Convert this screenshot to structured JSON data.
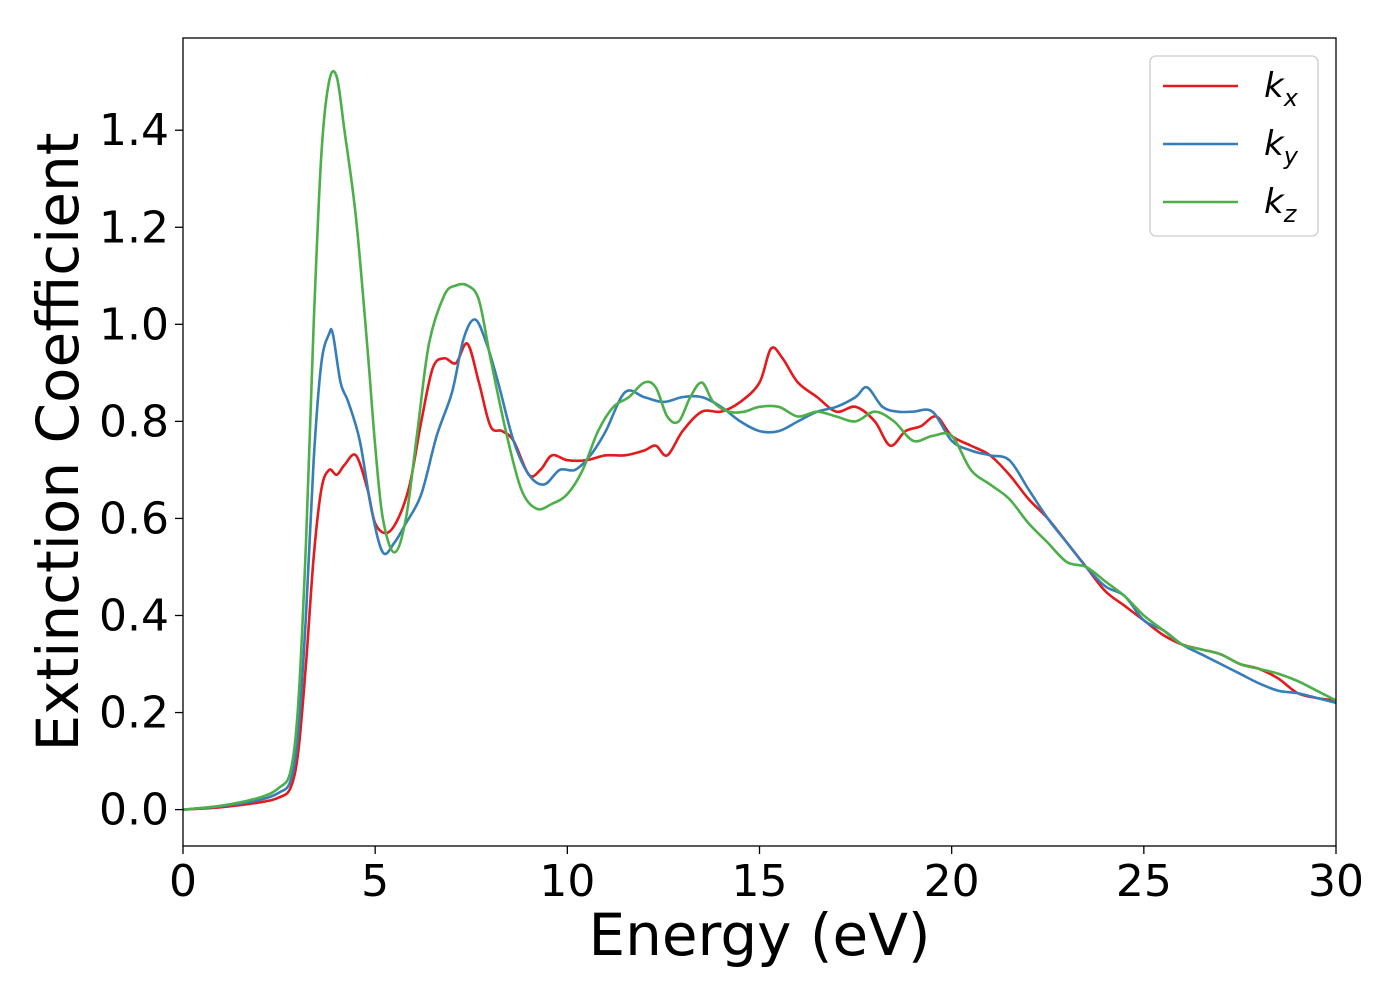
{
  "chart_data": {
    "type": "line",
    "xlabel": "Energy (eV)",
    "ylabel": "Extinction Coefficient",
    "xlim": [
      0,
      30
    ],
    "ylim": [
      -0.075,
      1.59
    ],
    "xticks": [
      0,
      5,
      10,
      15,
      20,
      25,
      30
    ],
    "xtick_labels": [
      "0",
      "5",
      "10",
      "15",
      "20",
      "25",
      "30"
    ],
    "yticks": [
      0.0,
      0.2,
      0.4,
      0.6,
      0.8,
      1.0,
      1.2,
      1.4
    ],
    "ytick_labels": [
      "0.0",
      "0.2",
      "0.4",
      "0.6",
      "0.8",
      "1.0",
      "1.2",
      "1.4"
    ],
    "grid": false,
    "legend_position": "top-right",
    "series": [
      {
        "name": "k",
        "subscript": "x",
        "color": "#e41a1c",
        "x": [
          0,
          1,
          2,
          2.5,
          2.8,
          3.0,
          3.2,
          3.4,
          3.6,
          3.8,
          4.0,
          4.2,
          4.5,
          4.8,
          5.0,
          5.3,
          5.6,
          5.9,
          6.2,
          6.5,
          6.8,
          7.1,
          7.4,
          7.7,
          8.0,
          8.3,
          8.6,
          9.0,
          9.3,
          9.6,
          10.0,
          10.5,
          11.0,
          11.5,
          12.0,
          12.3,
          12.6,
          13.0,
          13.5,
          14.0,
          14.5,
          15.0,
          15.3,
          15.6,
          16.0,
          16.5,
          17.0,
          17.5,
          18.0,
          18.4,
          18.8,
          19.2,
          19.6,
          20.0,
          20.5,
          21.0,
          21.5,
          22.0,
          22.5,
          23.0,
          23.5,
          24.0,
          24.5,
          25.0,
          25.5,
          26.0,
          26.5,
          27.0,
          27.5,
          28.0,
          28.5,
          29.0,
          29.5,
          30.0
        ],
        "y": [
          0.0,
          0.005,
          0.015,
          0.025,
          0.045,
          0.12,
          0.3,
          0.52,
          0.66,
          0.7,
          0.69,
          0.71,
          0.73,
          0.66,
          0.59,
          0.57,
          0.6,
          0.67,
          0.8,
          0.91,
          0.93,
          0.92,
          0.96,
          0.88,
          0.79,
          0.78,
          0.76,
          0.69,
          0.7,
          0.73,
          0.72,
          0.72,
          0.73,
          0.73,
          0.74,
          0.75,
          0.73,
          0.78,
          0.82,
          0.82,
          0.84,
          0.88,
          0.95,
          0.93,
          0.88,
          0.85,
          0.82,
          0.83,
          0.8,
          0.75,
          0.78,
          0.79,
          0.81,
          0.77,
          0.75,
          0.73,
          0.69,
          0.64,
          0.6,
          0.55,
          0.5,
          0.45,
          0.42,
          0.39,
          0.36,
          0.34,
          0.33,
          0.32,
          0.3,
          0.29,
          0.27,
          0.24,
          0.23,
          0.225
        ]
      },
      {
        "name": "k",
        "subscript": "y",
        "color": "#377eb8",
        "x": [
          0,
          1,
          2,
          2.5,
          2.8,
          3.0,
          3.2,
          3.4,
          3.6,
          3.8,
          3.9,
          4.1,
          4.3,
          4.6,
          4.9,
          5.2,
          5.5,
          5.8,
          6.2,
          6.6,
          7.0,
          7.3,
          7.6,
          7.9,
          8.2,
          8.6,
          9.0,
          9.4,
          9.8,
          10.2,
          10.6,
          11.0,
          11.5,
          12.0,
          12.5,
          13.0,
          13.5,
          14.0,
          14.5,
          15.0,
          15.5,
          16.0,
          16.5,
          17.0,
          17.5,
          17.8,
          18.2,
          18.6,
          19.0,
          19.5,
          20.0,
          20.5,
          21.0,
          21.5,
          22.0,
          22.5,
          23.0,
          23.5,
          24.0,
          24.5,
          25.0,
          25.5,
          26.0,
          26.5,
          27.0,
          27.5,
          28.0,
          28.5,
          29.0,
          29.5,
          30.0
        ],
        "y": [
          0.0,
          0.007,
          0.02,
          0.035,
          0.06,
          0.16,
          0.4,
          0.72,
          0.92,
          0.98,
          0.98,
          0.88,
          0.84,
          0.76,
          0.62,
          0.53,
          0.55,
          0.59,
          0.65,
          0.77,
          0.86,
          0.97,
          1.01,
          0.96,
          0.88,
          0.76,
          0.69,
          0.67,
          0.7,
          0.7,
          0.73,
          0.78,
          0.86,
          0.85,
          0.84,
          0.85,
          0.85,
          0.83,
          0.8,
          0.78,
          0.78,
          0.8,
          0.82,
          0.83,
          0.85,
          0.87,
          0.83,
          0.82,
          0.82,
          0.82,
          0.76,
          0.74,
          0.73,
          0.72,
          0.66,
          0.6,
          0.55,
          0.5,
          0.46,
          0.44,
          0.39,
          0.37,
          0.34,
          0.32,
          0.3,
          0.28,
          0.26,
          0.245,
          0.24,
          0.23,
          0.22
        ]
      },
      {
        "name": "k",
        "subscript": "z",
        "color": "#4daf4a",
        "x": [
          0,
          1,
          2,
          2.5,
          2.8,
          3.0,
          3.2,
          3.4,
          3.6,
          3.8,
          4.0,
          4.2,
          4.5,
          4.8,
          5.0,
          5.2,
          5.5,
          5.8,
          6.1,
          6.4,
          6.8,
          7.1,
          7.4,
          7.7,
          8.0,
          8.4,
          8.8,
          9.2,
          9.6,
          10.0,
          10.4,
          10.8,
          11.2,
          11.6,
          12.0,
          12.3,
          12.6,
          12.9,
          13.2,
          13.5,
          13.8,
          14.2,
          14.6,
          15.0,
          15.5,
          16.0,
          16.5,
          17.0,
          17.5,
          18.0,
          18.5,
          19.0,
          19.5,
          20.0,
          20.5,
          21.0,
          21.5,
          22.0,
          22.5,
          23.0,
          23.5,
          24.0,
          24.5,
          25.0,
          25.5,
          26.0,
          26.5,
          27.0,
          27.5,
          28.0,
          28.5,
          29.0,
          29.5,
          30.0
        ],
        "y": [
          0.0,
          0.008,
          0.025,
          0.045,
          0.08,
          0.22,
          0.55,
          1.0,
          1.35,
          1.5,
          1.51,
          1.4,
          1.22,
          0.95,
          0.75,
          0.6,
          0.53,
          0.6,
          0.78,
          0.96,
          1.06,
          1.08,
          1.08,
          1.05,
          0.93,
          0.78,
          0.66,
          0.62,
          0.63,
          0.65,
          0.7,
          0.78,
          0.83,
          0.85,
          0.88,
          0.87,
          0.81,
          0.8,
          0.85,
          0.88,
          0.84,
          0.82,
          0.82,
          0.83,
          0.83,
          0.81,
          0.82,
          0.81,
          0.8,
          0.82,
          0.8,
          0.76,
          0.77,
          0.77,
          0.7,
          0.67,
          0.64,
          0.59,
          0.55,
          0.51,
          0.5,
          0.47,
          0.44,
          0.4,
          0.37,
          0.34,
          0.33,
          0.32,
          0.3,
          0.29,
          0.28,
          0.265,
          0.245,
          0.225
        ]
      }
    ]
  }
}
